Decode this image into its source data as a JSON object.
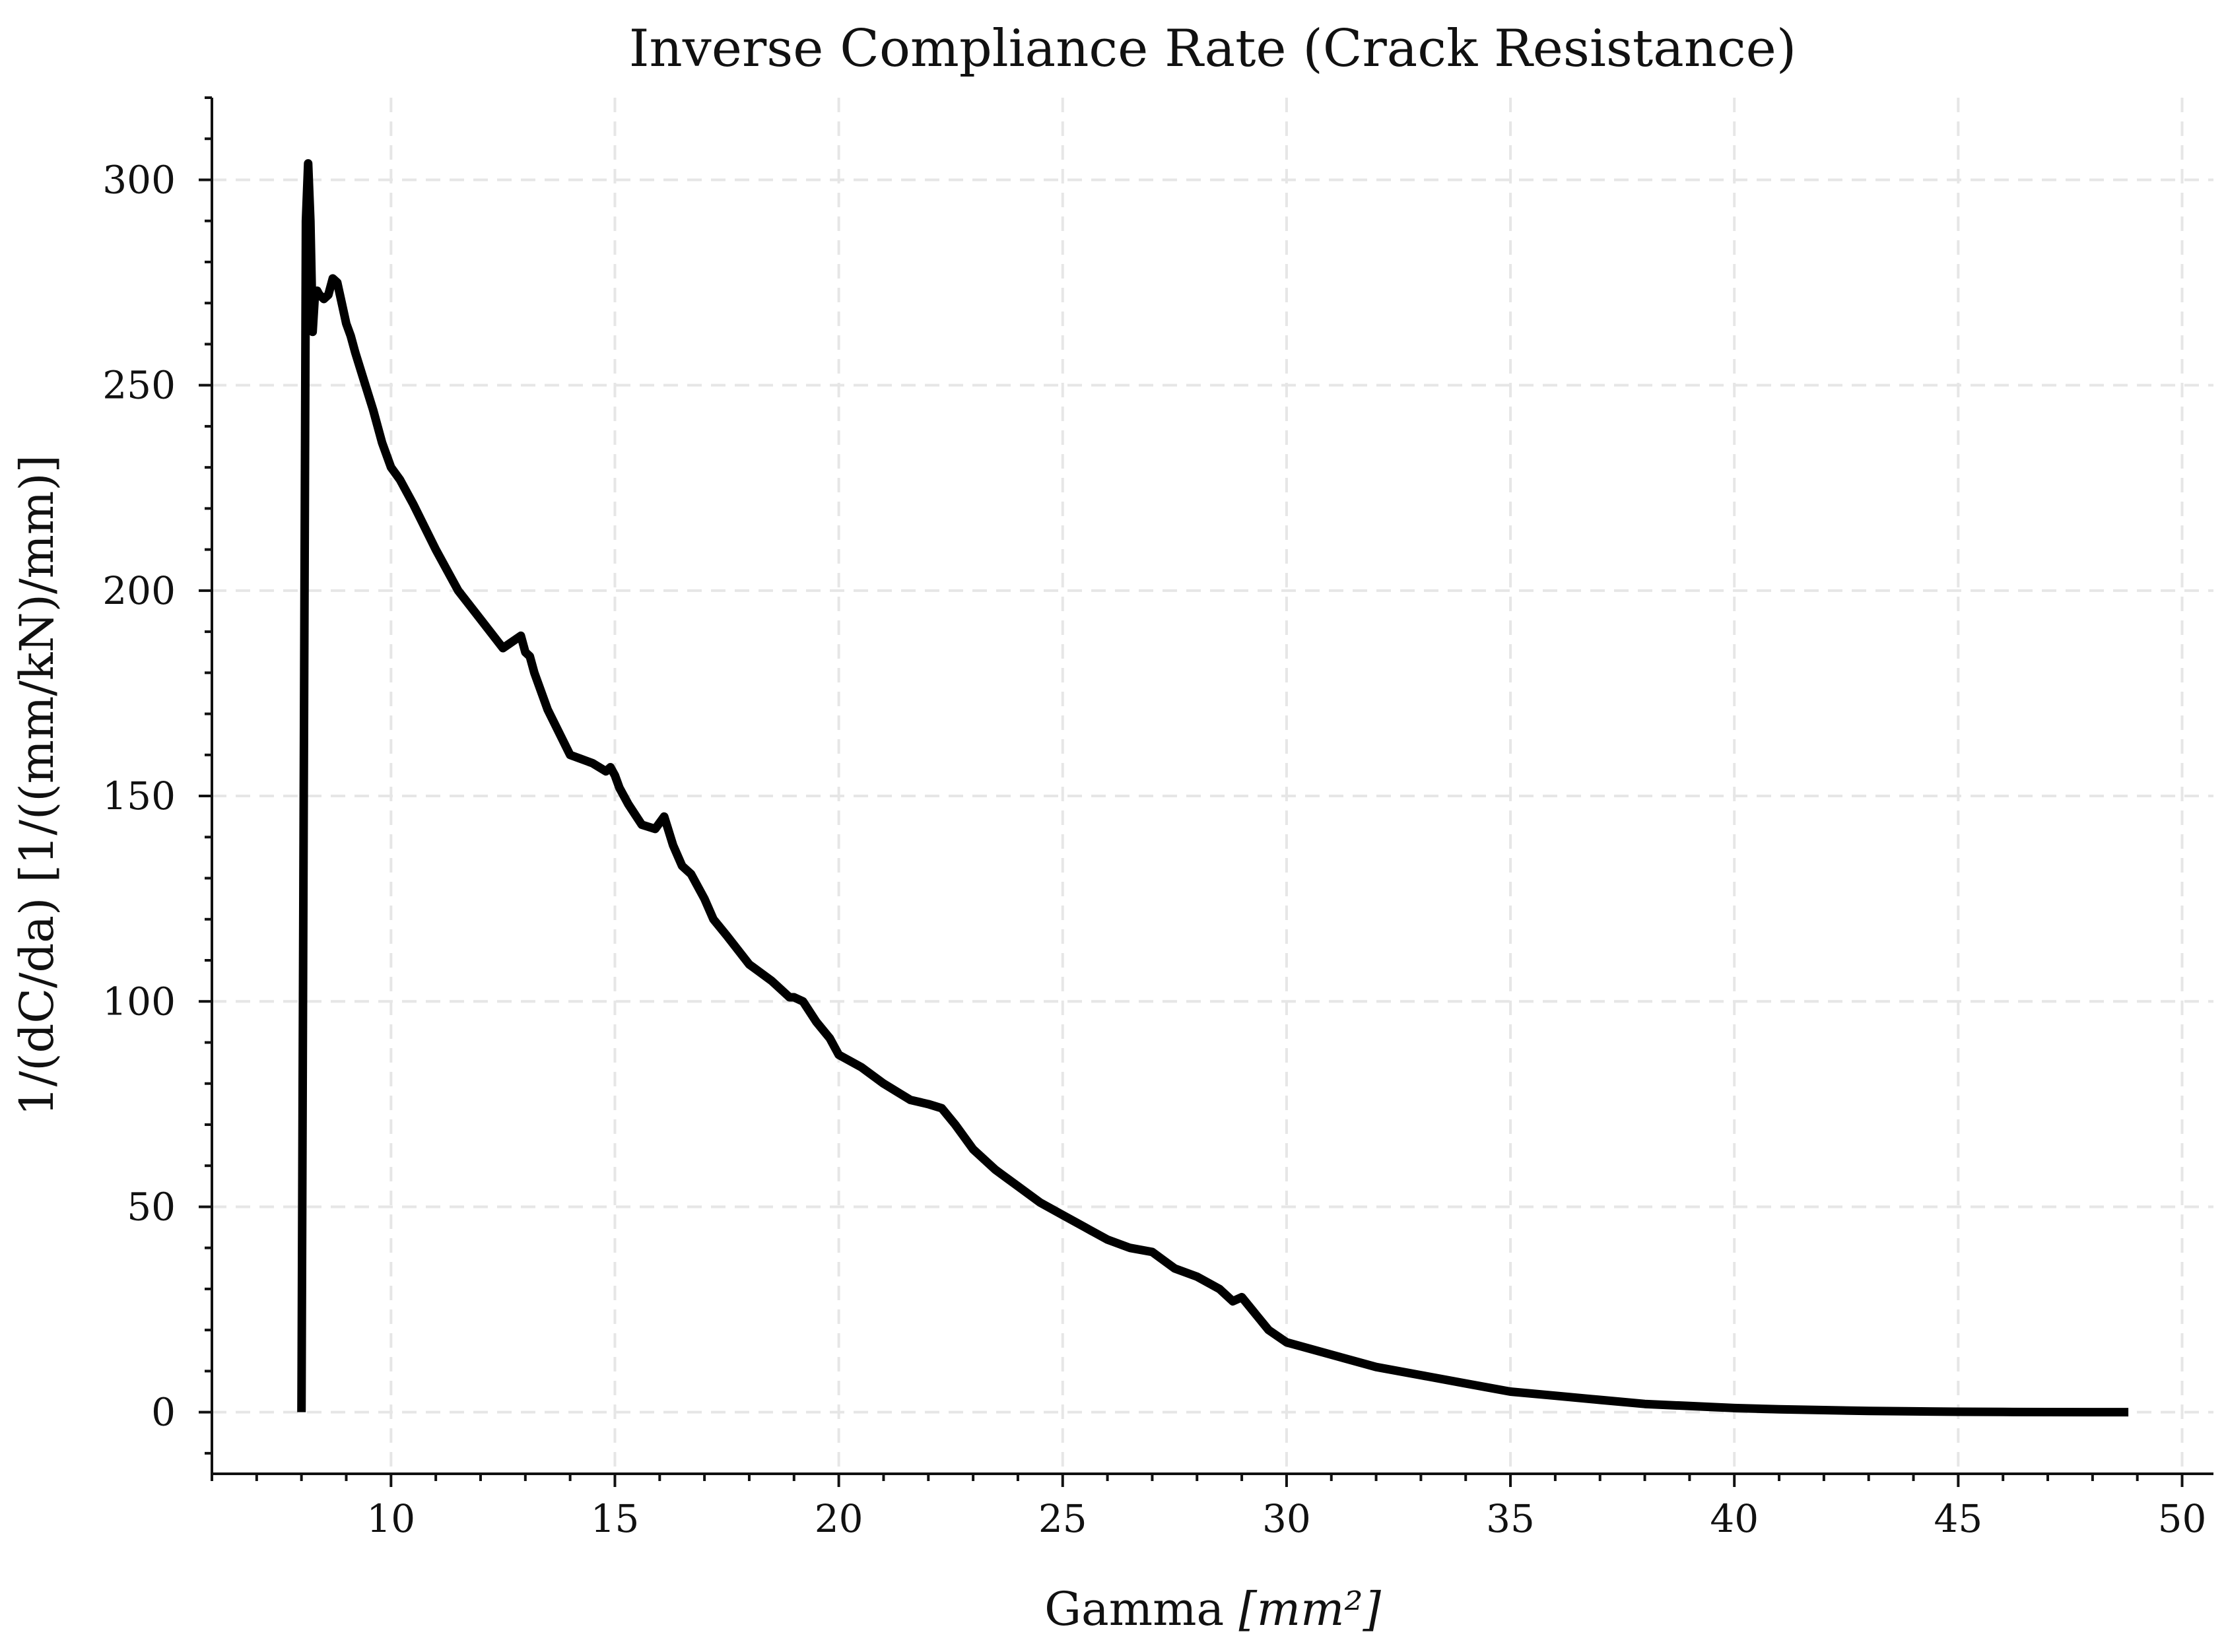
{
  "chart_data": {
    "type": "line",
    "title": "Inverse Compliance Rate (Crack Resistance)",
    "xlabel_main": "Gamma ",
    "xlabel_math": "[mm²]",
    "ylabel": "1/(dC/da) [1/((mm/kN)/mm)]",
    "xlim": [
      6,
      50.7
    ],
    "ylim": [
      -15,
      320
    ],
    "xticks": [
      10,
      15,
      20,
      25,
      30,
      35,
      40,
      45,
      50
    ],
    "yticks": [
      0,
      50,
      100,
      150,
      200,
      250,
      300
    ],
    "x_minor_step": 1,
    "y_minor_step": 10,
    "grid": true,
    "line_color": "#000000",
    "series": [
      {
        "x": [
          8.0,
          8.05,
          8.1,
          8.15,
          8.2,
          8.25,
          8.3,
          8.35,
          8.4,
          8.5,
          8.6,
          8.7,
          8.8,
          8.9,
          9.0,
          9.1,
          9.2,
          9.4,
          9.6,
          9.8,
          10.0,
          10.2,
          10.5,
          11.0,
          11.5,
          12.0,
          12.5,
          12.9,
          13.0,
          13.1,
          13.2,
          13.5,
          14.0,
          14.5,
          14.8,
          14.9,
          15.0,
          15.1,
          15.3,
          15.6,
          15.9,
          16.1,
          16.3,
          16.5,
          16.7,
          16.9,
          17.0,
          17.2,
          17.5,
          18.0,
          18.5,
          18.9,
          19.0,
          19.2,
          19.5,
          19.8,
          19.9,
          20.0,
          20.5,
          21.0,
          21.3,
          21.6,
          22.0,
          22.3,
          22.6,
          22.8,
          23.0,
          23.5,
          24.0,
          24.5,
          25.0,
          25.5,
          26.0,
          26.5,
          27.0,
          27.5,
          28.0,
          28.5,
          28.8,
          29.0,
          29.3,
          29.6,
          30.0,
          31.0,
          32.0,
          33.0,
          34.0,
          35.0,
          36.0,
          37.0,
          38.0,
          39.0,
          40.0,
          41.0,
          42.0,
          43.0,
          44.0,
          45.0,
          46.0,
          47.0,
          48.0,
          48.8
        ],
        "y": [
          0,
          150,
          290,
          304,
          290,
          263,
          272,
          273,
          272,
          271,
          272,
          276,
          275,
          270,
          265,
          262,
          258,
          251,
          244,
          236,
          230,
          227,
          221,
          210,
          200,
          193,
          186,
          189,
          185,
          184,
          180,
          171,
          160,
          158,
          156,
          157,
          155,
          152,
          148,
          143,
          142,
          145,
          138,
          133,
          131,
          127,
          125,
          120,
          116,
          109,
          105,
          101,
          101,
          100,
          95,
          91,
          89,
          87,
          84,
          80,
          78,
          76,
          75,
          74,
          70,
          67,
          64,
          59,
          55,
          51,
          48,
          45,
          42,
          40,
          39,
          35,
          33,
          30,
          27,
          28,
          24,
          20,
          17,
          14,
          11,
          9,
          7,
          5,
          4,
          3,
          2,
          1.5,
          1,
          0.7,
          0.5,
          0.3,
          0.2,
          0.1,
          0.05,
          0.02,
          0,
          0
        ]
      }
    ]
  }
}
